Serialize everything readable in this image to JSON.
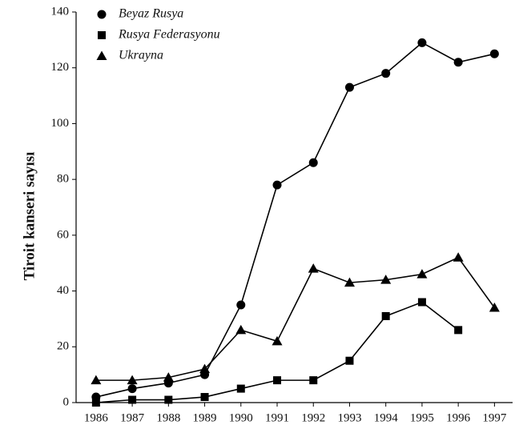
{
  "chart_data": {
    "type": "line",
    "y_label": "Tiroit kanseri sayısı",
    "x": [
      1986,
      1987,
      1988,
      1989,
      1990,
      1991,
      1992,
      1993,
      1994,
      1995,
      1996,
      1997
    ],
    "series": [
      {
        "name": "Beyaz Rusya",
        "color": "#000000",
        "marker": "circle",
        "values": [
          2,
          5,
          7,
          10,
          35,
          78,
          86,
          113,
          118,
          129,
          122,
          125
        ]
      },
      {
        "name": "Rusya Federasyonu",
        "color": "#000000",
        "marker": "square",
        "values": [
          0,
          1,
          1,
          2,
          5,
          8,
          8,
          15,
          31,
          36,
          26,
          null
        ]
      },
      {
        "name": "Ukrayna",
        "color": "#000000",
        "marker": "triangle",
        "values": [
          8,
          8,
          9,
          12,
          26,
          22,
          48,
          43,
          44,
          46,
          52,
          34
        ]
      }
    ],
    "xlim": [
      1985.45,
      1997.5
    ],
    "xticks": [
      1986,
      1987,
      1988,
      1989,
      1990,
      1991,
      1992,
      1993,
      1994,
      1995,
      1996,
      1997
    ],
    "ylim": [
      0,
      140
    ],
    "yticks": [
      0,
      20,
      40,
      60,
      80,
      100,
      120,
      140
    ],
    "legend": "top-left"
  }
}
